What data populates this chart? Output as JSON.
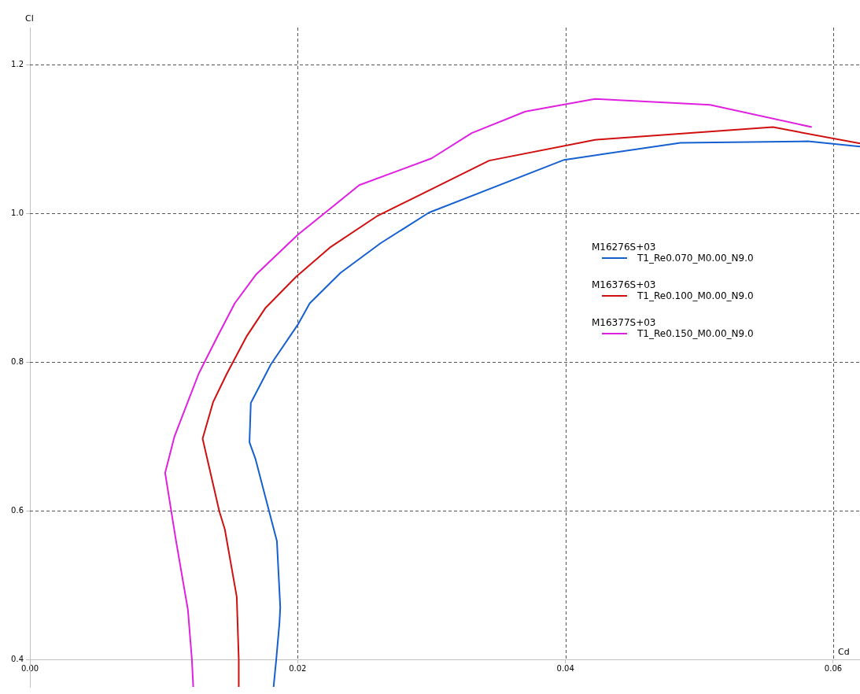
{
  "chart_data": {
    "type": "line",
    "xlabel": "Cd",
    "ylabel": "Cl",
    "xlim": [
      0,
      0.062
    ],
    "ylim": [
      0.363,
      1.25
    ],
    "xticks": [
      {
        "value": 0,
        "label": "0.00"
      },
      {
        "value": 0.02,
        "label": "0.02"
      },
      {
        "value": 0.04,
        "label": "0.04"
      },
      {
        "value": 0.06,
        "label": "0.06"
      }
    ],
    "yticks": [
      0.4,
      0.6,
      0.8,
      {
        "value": 1.0,
        "label": "1.0"
      },
      1.2
    ],
    "grid": true,
    "legend": "right",
    "annotations": [
      "M16276S+03",
      "M16376S+03",
      "M16377S+03"
    ],
    "series": [
      {
        "name": "T1_Re0.070_M0.00_N9.0",
        "color": "#1560d0",
        "x": [
          0.0182,
          0.0184,
          0.01864,
          0.0187,
          0.01845,
          0.01787,
          0.01686,
          0.0164,
          0.0165,
          0.018,
          0.02,
          0.0209,
          0.0232,
          0.0262,
          0.0298,
          0.0399,
          0.0486,
          0.0581,
          0.062
        ],
        "values": [
          0.363,
          0.4,
          0.449,
          0.47,
          0.559,
          0.599,
          0.669,
          0.692,
          0.745,
          0.797,
          0.85,
          0.879,
          0.92,
          0.96,
          1.001,
          1.072,
          1.095,
          1.097,
          1.09
        ]
      },
      {
        "name": "T1_Re0.100_M0.00_N9.0",
        "color": "#d01010",
        "x": [
          0.0156,
          0.0156,
          0.01545,
          0.01456,
          0.01415,
          0.0129,
          0.01368,
          0.0147,
          0.0162,
          0.0176,
          0.0199,
          0.0224,
          0.0259,
          0.0343,
          0.0422,
          0.0555,
          0.062
        ],
        "values": [
          0.363,
          0.4,
          0.484,
          0.575,
          0.599,
          0.697,
          0.746,
          0.784,
          0.835,
          0.873,
          0.915,
          0.954,
          0.996,
          1.071,
          1.099,
          1.116,
          1.094
        ]
      },
      {
        "name": "T1_Re0.150_M0.00_N9.0",
        "color": "#e020e0",
        "x": [
          0.0122,
          0.0121,
          0.0118,
          0.0109,
          0.0101,
          0.0108,
          0.0126,
          0.014,
          0.0153,
          0.0169,
          0.02,
          0.0246,
          0.03,
          0.033,
          0.037,
          0.0422,
          0.0508,
          0.0584
        ],
        "values": [
          0.363,
          0.4,
          0.467,
          0.561,
          0.651,
          0.7,
          0.784,
          0.834,
          0.879,
          0.918,
          0.971,
          1.038,
          1.074,
          1.108,
          1.137,
          1.154,
          1.146,
          1.116
        ]
      }
    ]
  }
}
